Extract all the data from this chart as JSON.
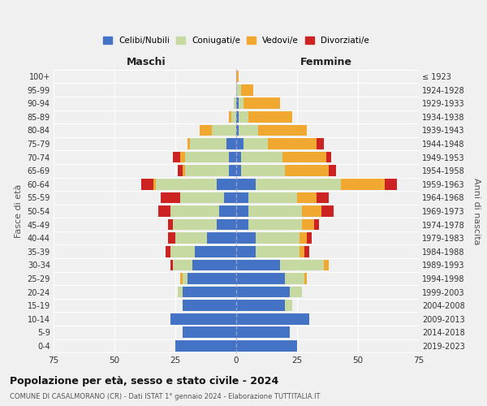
{
  "age_groups": [
    "0-4",
    "5-9",
    "10-14",
    "15-19",
    "20-24",
    "25-29",
    "30-34",
    "35-39",
    "40-44",
    "45-49",
    "50-54",
    "55-59",
    "60-64",
    "65-69",
    "70-74",
    "75-79",
    "80-84",
    "85-89",
    "90-94",
    "95-99",
    "100+"
  ],
  "birth_years": [
    "2019-2023",
    "2014-2018",
    "2009-2013",
    "2004-2008",
    "1999-2003",
    "1994-1998",
    "1989-1993",
    "1984-1988",
    "1979-1983",
    "1974-1978",
    "1969-1973",
    "1964-1968",
    "1959-1963",
    "1954-1958",
    "1949-1953",
    "1944-1948",
    "1939-1943",
    "1934-1938",
    "1929-1933",
    "1924-1928",
    "≤ 1923"
  ],
  "male": {
    "celibi": [
      25,
      22,
      27,
      22,
      22,
      20,
      18,
      17,
      12,
      8,
      7,
      5,
      8,
      3,
      3,
      4,
      0,
      0,
      0,
      0,
      0
    ],
    "coniugati": [
      0,
      0,
      0,
      0,
      2,
      2,
      8,
      10,
      13,
      18,
      20,
      18,
      25,
      18,
      18,
      15,
      10,
      2,
      1,
      0,
      0
    ],
    "vedovi": [
      0,
      0,
      0,
      0,
      0,
      1,
      0,
      0,
      0,
      0,
      0,
      0,
      1,
      1,
      2,
      1,
      5,
      1,
      0,
      0,
      0
    ],
    "divorziati": [
      0,
      0,
      0,
      0,
      0,
      0,
      1,
      2,
      3,
      2,
      5,
      8,
      5,
      2,
      3,
      0,
      0,
      0,
      0,
      0,
      0
    ]
  },
  "female": {
    "nubili": [
      25,
      22,
      30,
      20,
      22,
      20,
      18,
      8,
      8,
      5,
      5,
      5,
      8,
      2,
      2,
      3,
      1,
      1,
      1,
      0,
      0
    ],
    "coniugate": [
      0,
      0,
      0,
      3,
      5,
      8,
      18,
      18,
      18,
      22,
      22,
      20,
      35,
      18,
      17,
      10,
      8,
      4,
      2,
      2,
      0
    ],
    "vedove": [
      0,
      0,
      0,
      0,
      0,
      1,
      2,
      2,
      3,
      5,
      8,
      8,
      18,
      18,
      18,
      20,
      20,
      18,
      15,
      5,
      1
    ],
    "divorziate": [
      0,
      0,
      0,
      0,
      0,
      0,
      0,
      2,
      2,
      2,
      5,
      5,
      5,
      3,
      2,
      3,
      0,
      0,
      0,
      0,
      0
    ]
  },
  "colors": {
    "celibi": "#4472c4",
    "coniugati": "#c5d9a0",
    "vedovi": "#f0a830",
    "divorziati": "#cc2222"
  },
  "xlim": 75,
  "title": "Popolazione per età, sesso e stato civile - 2024",
  "subtitle": "COMUNE DI CASALMORANO (CR) - Dati ISTAT 1° gennaio 2024 - Elaborazione TUTTITALIA.IT",
  "ylabel_left": "Fasce di età",
  "ylabel_right": "Anni di nascita",
  "header_male": "Maschi",
  "header_female": "Femmine",
  "legend_labels": [
    "Celibi/Nubili",
    "Coniugati/e",
    "Vedovi/e",
    "Divorziati/e"
  ],
  "bg_color": "#f0f0f0"
}
